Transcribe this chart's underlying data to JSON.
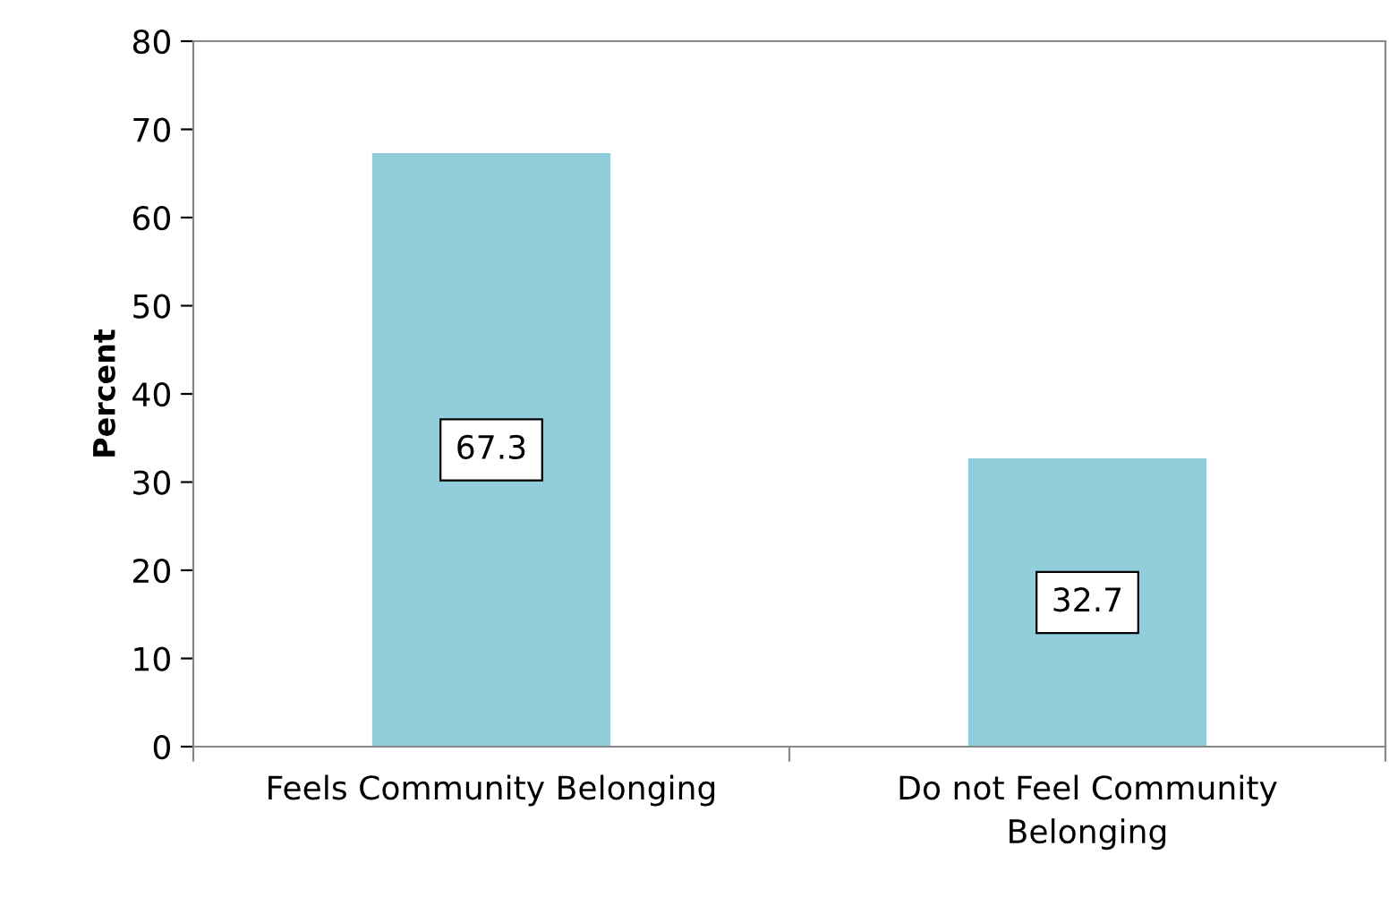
{
  "chart_data": {
    "type": "bar",
    "ylabel": "Percent",
    "categories": [
      "Feels Community Belonging",
      "Do not Feel Community Belonging"
    ],
    "values": [
      67.3,
      32.7
    ],
    "color": "#92cddc",
    "ylim": [
      0,
      80
    ],
    "yticks": [
      0,
      10,
      20,
      30,
      40,
      50,
      60,
      70,
      80
    ],
    "grid": false,
    "data_labels": true
  }
}
